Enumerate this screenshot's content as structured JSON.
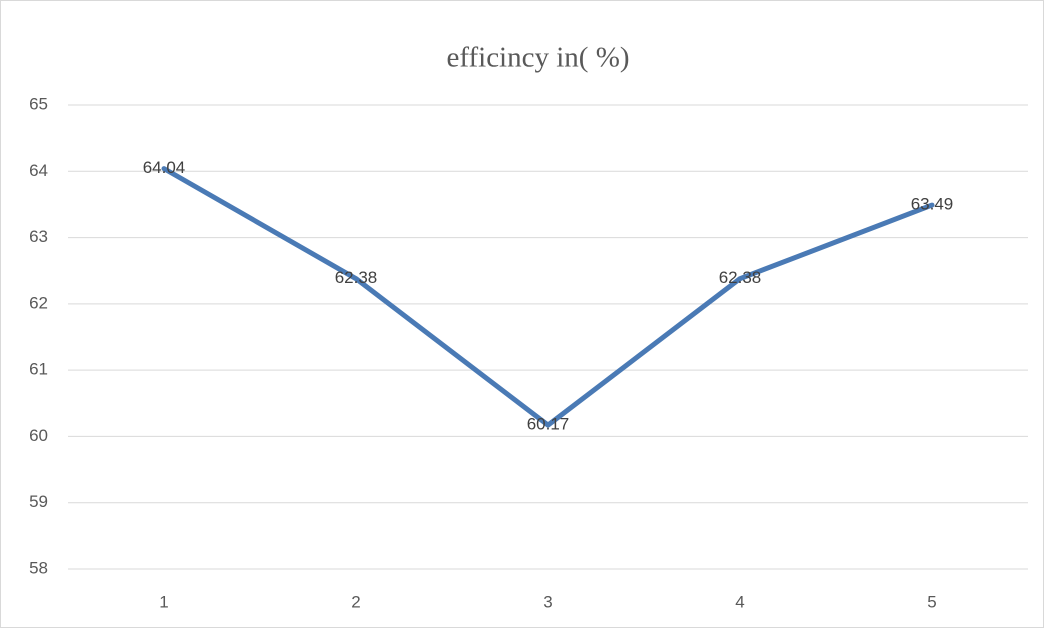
{
  "chart_data": {
    "type": "line",
    "title": "efficincy in( %)",
    "categories": [
      "1",
      "2",
      "3",
      "4",
      "5"
    ],
    "values": [
      64.04,
      62.38,
      60.17,
      62.38,
      63.49
    ],
    "color": "#4a7ab5",
    "ylim": [
      58,
      65
    ],
    "yticks": [
      58,
      59,
      60,
      61,
      62,
      63,
      64,
      65
    ],
    "grid": true,
    "data_labels": true
  }
}
